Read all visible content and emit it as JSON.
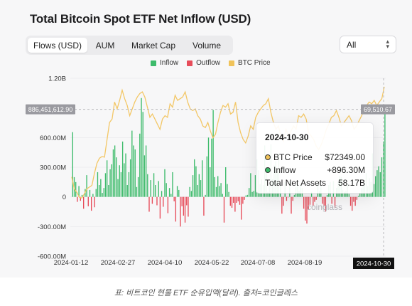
{
  "title": "Total Bitcoin Spot ETF Net Inflow (USD)",
  "tabs": [
    {
      "label": "Flows (USD)",
      "active": true
    },
    {
      "label": "AUM",
      "active": false
    },
    {
      "label": "Market Cap",
      "active": false
    },
    {
      "label": "Volume",
      "active": false
    }
  ],
  "range_select": {
    "value": "All",
    "icon": "chevron-updown-icon"
  },
  "legend": [
    {
      "label": "Inflow",
      "color": "#3dbb6b"
    },
    {
      "label": "Outflow",
      "color": "#e74c5a"
    },
    {
      "label": "BTC Price",
      "color": "#f0c35a"
    }
  ],
  "watermark": "coinglass",
  "tooltip": {
    "date": "2024-10-30",
    "rows": [
      {
        "label": "BTC Price",
        "value": "$72349.00",
        "color": "#f0c35a"
      },
      {
        "label": "Inflow",
        "value": "+896.30M",
        "color": "#3dbb6b"
      },
      {
        "label": "Total Net Assets",
        "value": "58.17B"
      }
    ]
  },
  "caption": "표: 비트코인 현물 ETF 순유입액(달러). 출처=코인글래스",
  "chart_data": {
    "type": "bar",
    "title": "Total Bitcoin Spot ETF Net Inflow (USD)",
    "x_tick_labels": [
      "2024-01-12",
      "2024-02-27",
      "2024-04-10",
      "2024-05-22",
      "2024-07-08",
      "2024-08-19",
      "2024-10-30"
    ],
    "y_tick_labels": [
      "1.20B",
      "600.00M",
      "300.00M",
      "0",
      "-300.00M",
      "-600.00M"
    ],
    "ylim": [
      -600,
      1200
    ],
    "y_unit": "M USD",
    "crosshair": {
      "y_label": "886,451,612.90",
      "price_label": "69,510.67",
      "x_label": "2024-10-30"
    },
    "legend_position": "top-center",
    "series": [
      {
        "name": "Inflow",
        "color": "#3dbb6b"
      },
      {
        "name": "Outflow",
        "color": "#e74c5a"
      },
      {
        "name": "BTC Price",
        "color": "#f0c35a",
        "axis": "right"
      }
    ],
    "flows": [
      0,
      655,
      200,
      150,
      -50,
      110,
      -40,
      20,
      -120,
      80,
      220,
      -95,
      70,
      -140,
      30,
      -105,
      80,
      250,
      120,
      180,
      40,
      90,
      240,
      370,
      120,
      280,
      330,
      480,
      520,
      400,
      180,
      320,
      250,
      560,
      340,
      440,
      120,
      250,
      380,
      670,
      520,
      480,
      100,
      200,
      640,
      1000,
      860,
      420,
      520,
      230,
      -150,
      170,
      -70,
      240,
      120,
      -85,
      160,
      -220,
      60,
      -100,
      280,
      140,
      -165,
      90,
      30,
      250,
      -45,
      -250,
      110,
      70,
      -300,
      -95,
      -190,
      -260,
      -85,
      -200,
      100,
      60,
      220,
      380,
      310,
      120,
      230,
      170,
      370,
      -190,
      20,
      410,
      600,
      300,
      590,
      880,
      200,
      100,
      210,
      110,
      140,
      30,
      -260,
      300,
      130,
      50,
      -90,
      -110,
      -60,
      -150,
      -60,
      -45,
      -80,
      -230,
      -70,
      -30,
      15,
      20,
      90,
      240,
      50,
      60,
      220,
      380,
      270,
      130,
      180,
      120,
      520,
      300,
      50,
      125,
      530,
      180,
      320,
      360,
      250,
      440,
      130,
      -170,
      -90,
      150,
      -40,
      -5,
      160,
      -170,
      -40,
      20,
      100,
      130,
      60,
      120,
      90,
      -120,
      -240,
      -270,
      -130,
      -80,
      50,
      -90,
      -50,
      -30,
      130,
      60,
      110,
      -70,
      -90,
      -150,
      20,
      120,
      150,
      -70,
      160,
      -110,
      90,
      150,
      210,
      200,
      70,
      50,
      60,
      130,
      30,
      -90,
      -140,
      -50,
      -90,
      -30,
      10,
      40,
      90,
      120,
      150,
      240,
      110,
      190,
      150,
      440,
      130,
      210,
      270,
      310,
      250,
      400,
      560,
      900
    ],
    "btc_price": [
      46000,
      42500,
      41500,
      40000,
      39800,
      41000,
      42500,
      43000,
      43500,
      47000,
      50000,
      51500,
      52000,
      51800,
      57000,
      62000,
      63000,
      68000,
      66000,
      68500,
      71500,
      69000,
      67000,
      64000,
      66000,
      68000,
      69500,
      70500,
      71000,
      69500,
      66500,
      63500,
      64500,
      63000,
      61500,
      60000,
      63000,
      64000,
      63500,
      67500,
      66500,
      70000,
      68500,
      69000,
      69500,
      71000,
      68000,
      66000,
      65500,
      66000,
      64000,
      63000,
      61000,
      60500,
      62000,
      59500,
      57500,
      58500,
      62000,
      65000,
      67000,
      66500,
      67500,
      64500,
      65000,
      68000,
      62000,
      59000,
      57000,
      56000,
      58000,
      61000,
      60000,
      63500,
      65000,
      66000,
      67000,
      67500,
      69000,
      65000,
      62000,
      60000,
      61000,
      58000,
      56500,
      60000,
      58000,
      59500,
      61000,
      60000,
      64000,
      63500,
      64500,
      63000,
      59000,
      58000,
      57000,
      55000,
      54000,
      55500,
      57500,
      60000,
      61500,
      63500,
      64000,
      65500,
      63500,
      61000,
      62000,
      63000,
      64000,
      62500,
      60000,
      61000,
      62500,
      64000,
      66000,
      67000,
      68000,
      67500,
      68500,
      67000,
      68000,
      69000,
      72500
    ]
  }
}
